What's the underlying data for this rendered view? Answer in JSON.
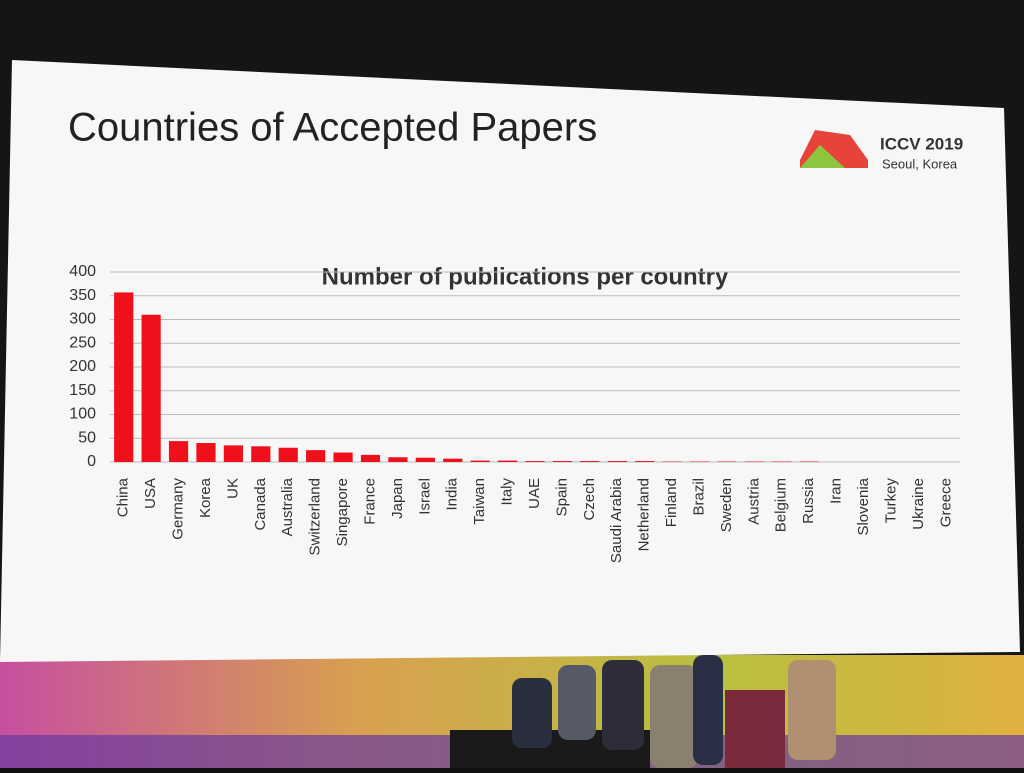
{
  "slide_title": "Countries of Accepted Papers",
  "logo_text": "ICCV 2019",
  "logo_subtitle": "Seoul, Korea",
  "chart_data": {
    "type": "bar",
    "title": "Number of publications per country",
    "categories": [
      "China",
      "USA",
      "Germany",
      "Korea",
      "UK",
      "Canada",
      "Australia",
      "Switzerland",
      "Singapore",
      "France",
      "Japan",
      "Israel",
      "India",
      "Taiwan",
      "Italy",
      "UAE",
      "Spain",
      "Czech",
      "Saudi Arabia",
      "Netherland",
      "Finland",
      "Brazil",
      "Sweden",
      "Austria",
      "Belgium",
      "Russia",
      "Iran",
      "Slovenia",
      "Turkey",
      "Ukraine",
      "Greece"
    ],
    "values": [
      357,
      310,
      44,
      40,
      35,
      33,
      30,
      25,
      20,
      15,
      10,
      9,
      7,
      3,
      3,
      2,
      2,
      2,
      2,
      2,
      1,
      1,
      1,
      1,
      1,
      1,
      0,
      0,
      0,
      0,
      0
    ],
    "color": "#f0101c",
    "ylim": [
      0,
      400
    ],
    "yticks": [
      0,
      50,
      100,
      150,
      200,
      250,
      300,
      350,
      400
    ],
    "grid": true
  }
}
